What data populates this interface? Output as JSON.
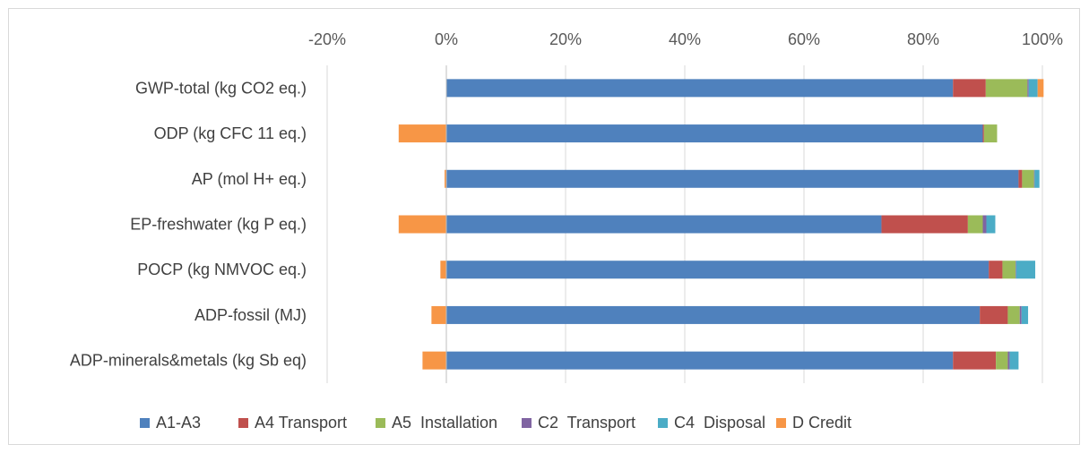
{
  "chart_data": {
    "type": "bar",
    "orientation": "horizontal",
    "stacked": "percent",
    "xlim": [
      -0.2,
      1.0
    ],
    "xticks": [
      -0.2,
      0,
      0.2,
      0.4,
      0.6,
      0.8,
      1.0
    ],
    "xtick_labels": [
      "-20%",
      "0%",
      "20%",
      "40%",
      "60%",
      "80%",
      "100%"
    ],
    "x_axis_position": "top",
    "grid": true,
    "legend_position": "bottom",
    "categories": [
      "GWP-total (kg CO2 eq.)",
      "ODP (kg CFC 11 eq.)",
      "AP (mol H+ eq.)",
      "EP-freshwater (kg P eq.)",
      "POCP (kg NMVOC eq.)",
      "ADP-fossil (MJ)",
      "ADP-minerals&metals (kg Sb eq)"
    ],
    "series": [
      {
        "name": "A1-A3",
        "color": "#4f81bd",
        "values": [
          0.85,
          0.9,
          0.96,
          0.73,
          0.91,
          0.895,
          0.85
        ]
      },
      {
        "name": "A4 Transport",
        "color": "#c0504d",
        "values": [
          0.055,
          0.002,
          0.006,
          0.145,
          0.023,
          0.047,
          0.072
        ]
      },
      {
        "name": "A5  Installation",
        "color": "#9bbb59",
        "values": [
          0.07,
          0.022,
          0.02,
          0.025,
          0.022,
          0.02,
          0.02
        ]
      },
      {
        "name": "C2  Transport",
        "color": "#8064a2",
        "values": [
          0.002,
          0.0,
          0.001,
          0.006,
          0.001,
          0.003,
          0.003
        ]
      },
      {
        "name": "C4  Disposal",
        "color": "#4bacc6",
        "values": [
          0.015,
          0.0,
          0.008,
          0.015,
          0.032,
          0.011,
          0.015
        ]
      },
      {
        "name": "D Credit",
        "color": "#f79646",
        "values": [
          0.01,
          -0.08,
          -0.003,
          -0.08,
          -0.01,
          -0.025,
          -0.04
        ]
      }
    ]
  }
}
